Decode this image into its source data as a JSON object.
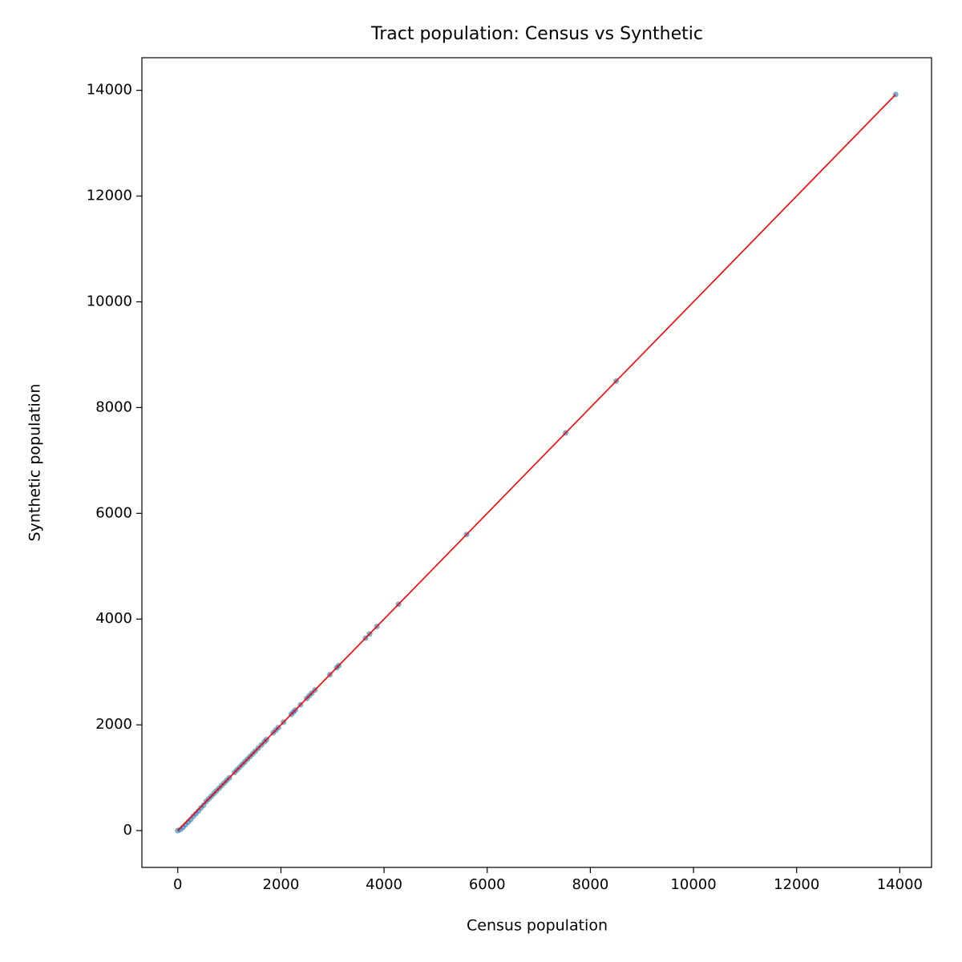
{
  "chart_data": {
    "type": "scatter",
    "title": "Tract population: Census vs Synthetic",
    "x_label": "Census population",
    "y_label": "Synthetic population",
    "xlim": [
      -696,
      14616
    ],
    "ylim": [
      -696,
      14616
    ],
    "xticks": [
      0,
      2000,
      4000,
      6000,
      8000,
      10000,
      12000,
      14000
    ],
    "yticks": [
      0,
      2000,
      4000,
      6000,
      8000,
      10000,
      12000,
      14000
    ],
    "series": [
      {
        "type": "scatter",
        "color": "#1f77b4",
        "x": [
          13920,
          8500,
          7520,
          5600,
          4280,
          3860,
          3720,
          3640,
          3120,
          3080,
          2950,
          2660,
          2600,
          2550,
          2500,
          2380,
          2280,
          2240,
          2200,
          2050,
          1950,
          1900,
          1850,
          1720,
          1680,
          1620,
          1560,
          1500,
          1450,
          1400,
          1350,
          1300,
          1250,
          1200,
          1150,
          1100,
          1000,
          950,
          900,
          850,
          800,
          750,
          700,
          650,
          600,
          550,
          500,
          450,
          400,
          350,
          300,
          250,
          200,
          150,
          100,
          50,
          0
        ],
        "values": [
          13920,
          8500,
          7520,
          5600,
          4280,
          3860,
          3720,
          3640,
          3120,
          3080,
          2950,
          2660,
          2600,
          2550,
          2500,
          2380,
          2280,
          2240,
          2200,
          2050,
          1950,
          1900,
          1850,
          1720,
          1680,
          1620,
          1560,
          1500,
          1450,
          1400,
          1350,
          1300,
          1250,
          1200,
          1150,
          1100,
          1000,
          950,
          900,
          850,
          800,
          750,
          700,
          650,
          600,
          550,
          480,
          430,
          370,
          320,
          270,
          210,
          160,
          110,
          60,
          20,
          0
        ]
      },
      {
        "type": "line",
        "color": "#ff0000",
        "x": [
          0,
          13920
        ],
        "values": [
          0,
          13920
        ]
      }
    ]
  }
}
